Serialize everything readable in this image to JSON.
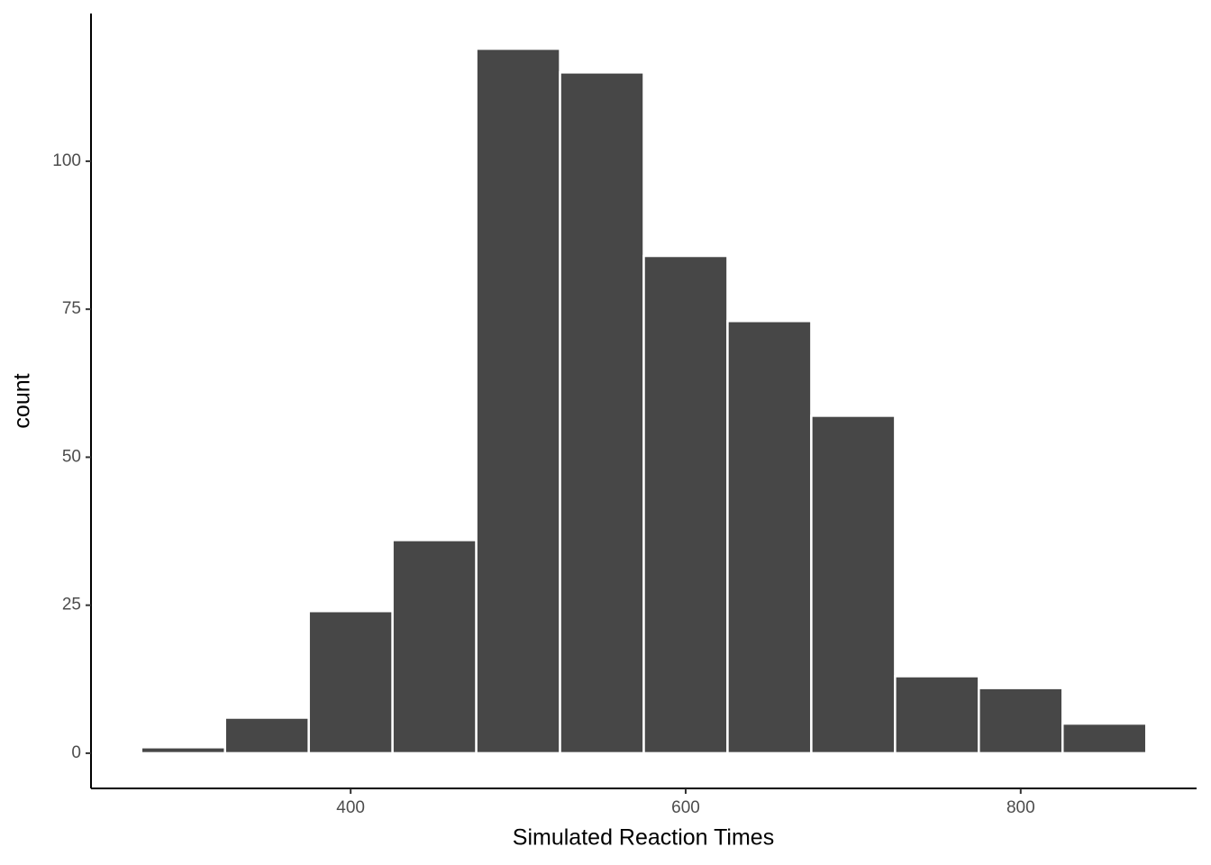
{
  "chart_data": {
    "type": "histogram",
    "xlabel": "Simulated Reaction Times",
    "ylabel": "count",
    "bins": [
      275,
      325,
      375,
      425,
      475,
      525,
      575,
      625,
      675,
      725,
      775,
      825,
      875
    ],
    "values": [
      1,
      6,
      24,
      36,
      119,
      115,
      84,
      73,
      57,
      13,
      11,
      5
    ],
    "color": "#474747",
    "xlim": [
      245,
      905
    ],
    "ylim": [
      -5.95,
      124.95
    ],
    "xticks": [
      400,
      600,
      800
    ],
    "yticks": [
      0,
      25,
      50,
      75,
      100
    ]
  }
}
